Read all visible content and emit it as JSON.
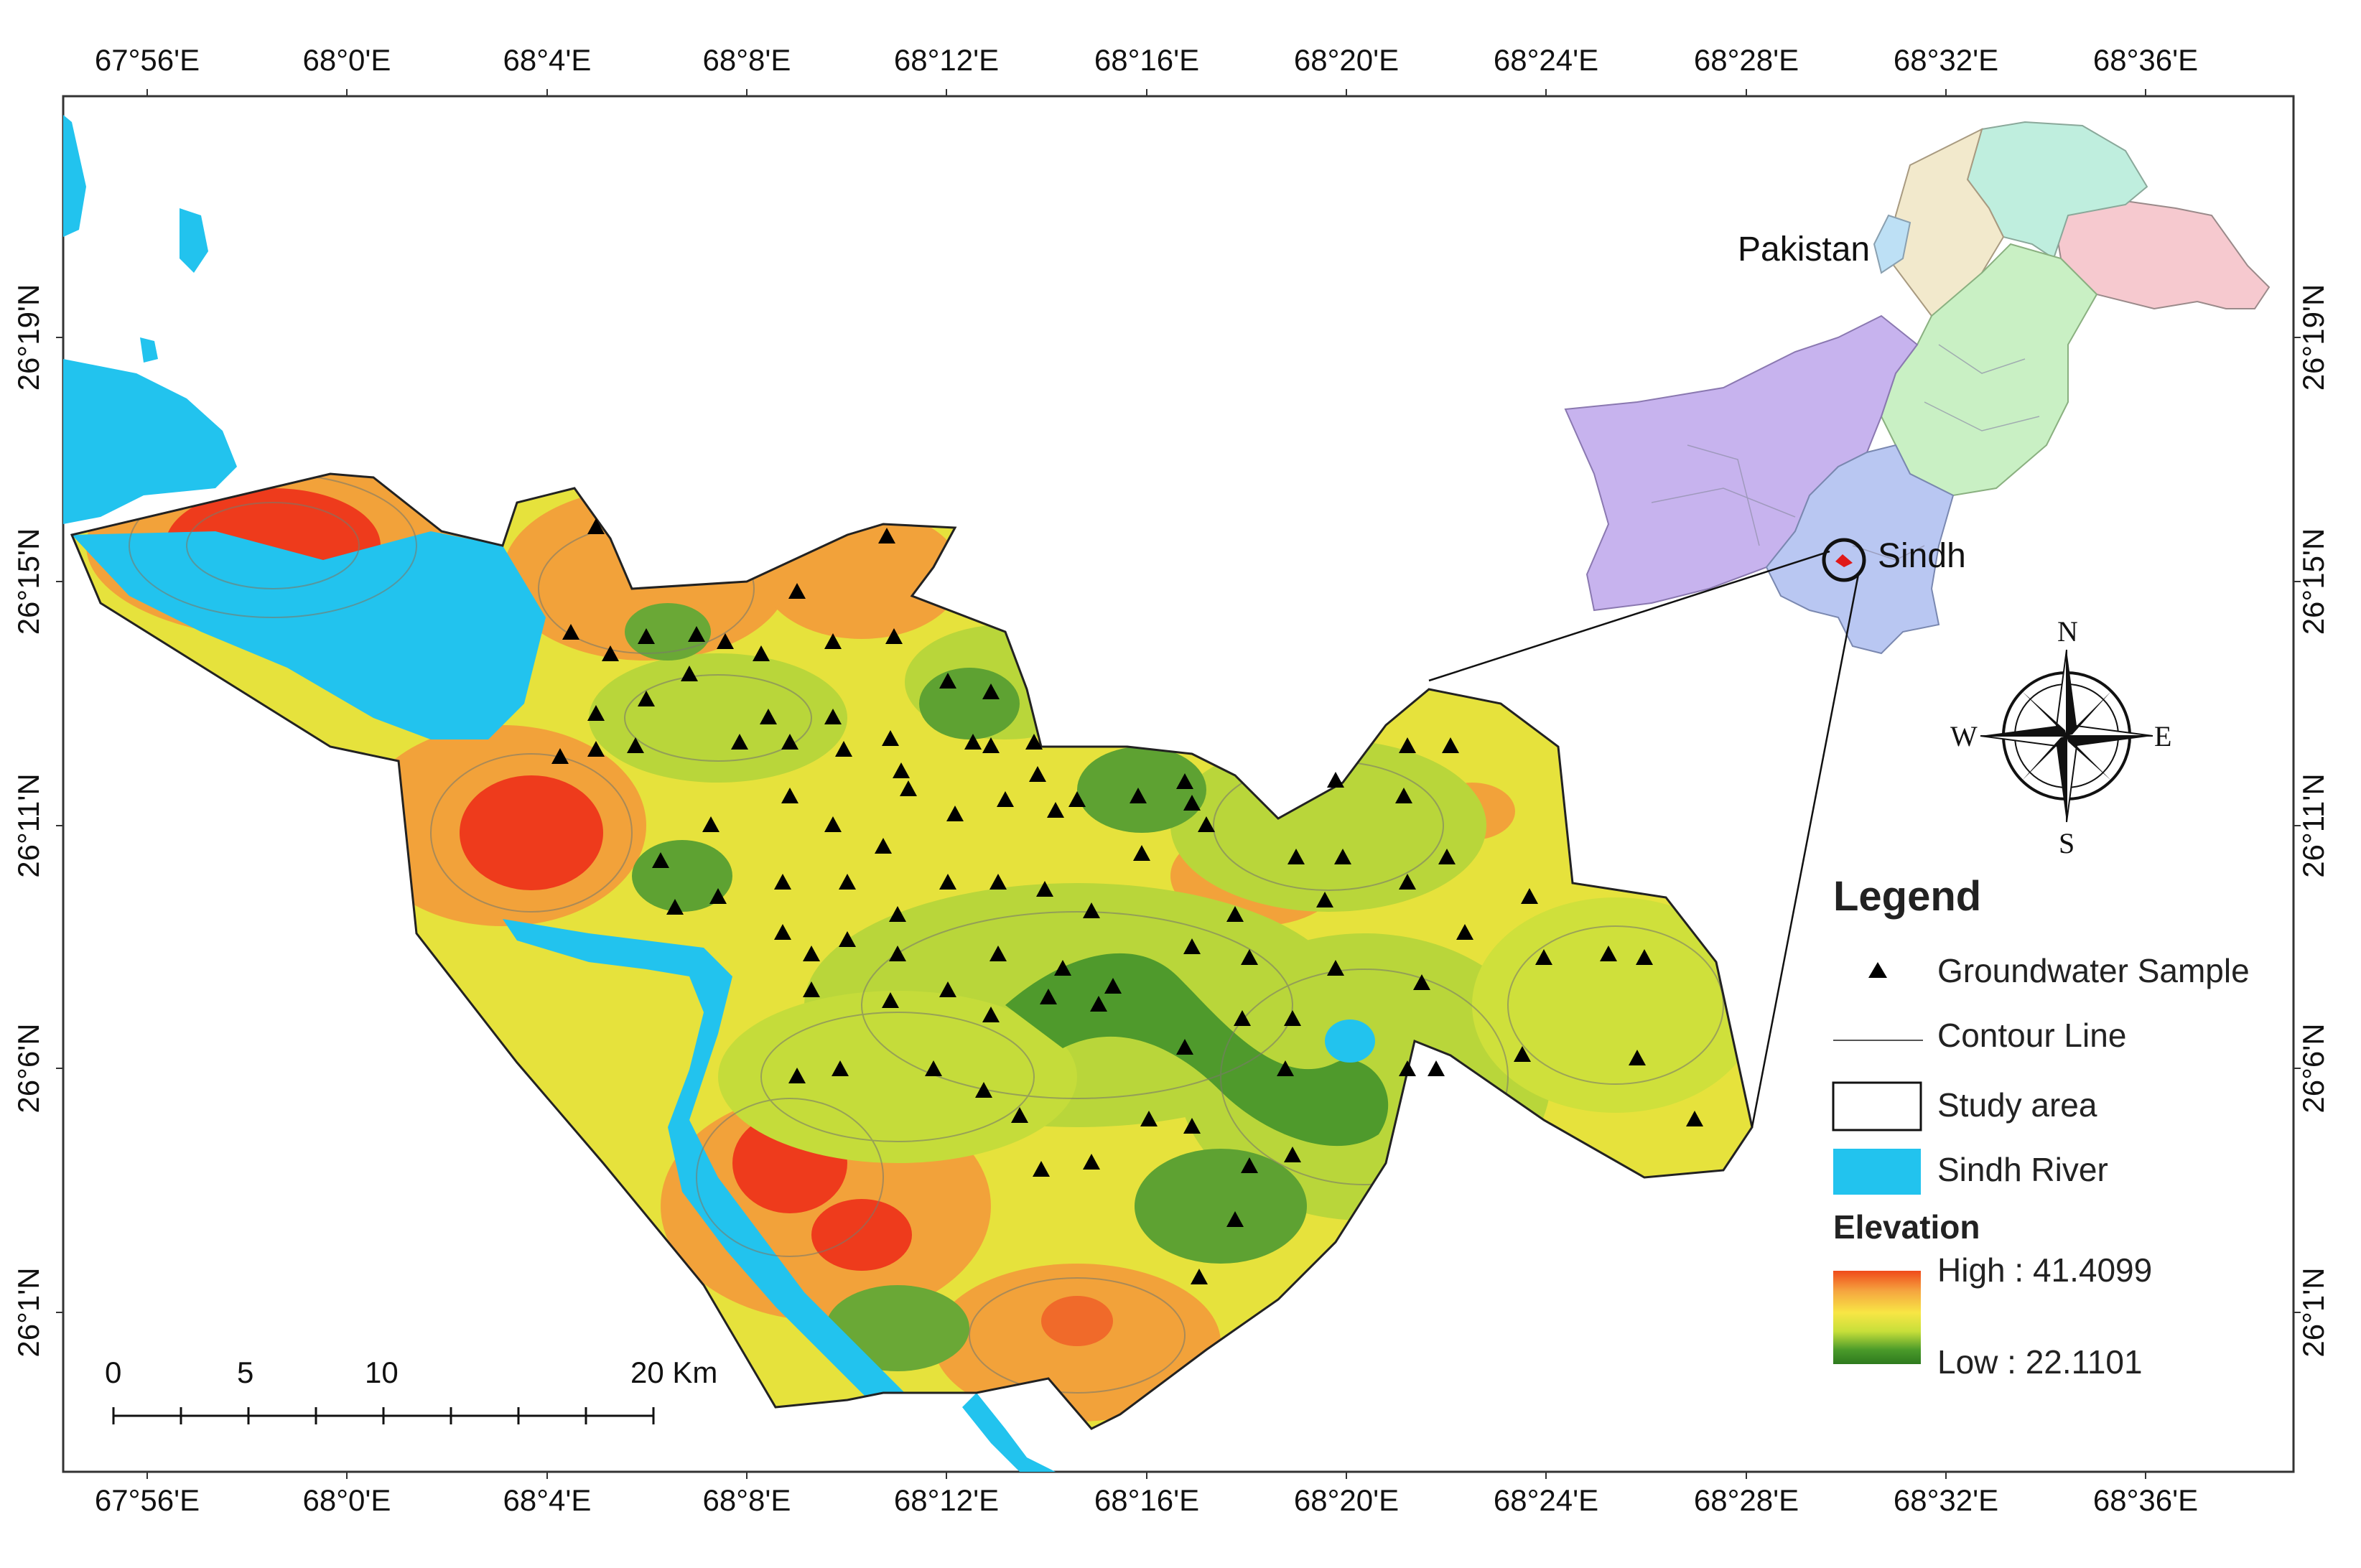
{
  "axes": {
    "top_ticks": [
      "67°56'E",
      "68°0'E",
      "68°4'E",
      "68°8'E",
      "68°12'E",
      "68°16'E",
      "68°20'E",
      "68°24'E",
      "68°28'E",
      "68°32'E",
      "68°36'E"
    ],
    "bottom_ticks": [
      "67°56'E",
      "68°0'E",
      "68°4'E",
      "68°8'E",
      "68°12'E",
      "68°16'E",
      "68°20'E",
      "68°24'E",
      "68°28'E",
      "68°32'E",
      "68°36'E"
    ],
    "left_ticks": [
      "26°19'N",
      "26°15'N",
      "26°11'N",
      "26°6'N",
      "26°1'N"
    ],
    "right_ticks": [
      "26°19'N",
      "26°15'N",
      "26°11'N",
      "26°6'N",
      "26°1'N"
    ]
  },
  "inset": {
    "country_label": "Pakistan",
    "province_label": "Sindh",
    "colors": {
      "balochistan": "#c7b3ee",
      "sindh": "#b9c7f2",
      "punjab": "#c9f0c4",
      "kpk": "#bfeede",
      "gb": "#f6c9cf",
      "fata": "#f2e9cc",
      "ict": "#bde0f5"
    }
  },
  "compass": {
    "n": "N",
    "s": "S",
    "e": "E",
    "w": "W"
  },
  "legend": {
    "title": "Legend",
    "items": [
      {
        "label": "Groundwater Sample",
        "symbol": "triangle-icon"
      },
      {
        "label": "Contour Line",
        "symbol": "line-icon"
      },
      {
        "label": "Study area",
        "symbol": "box-icon"
      },
      {
        "label": "Sindh River",
        "symbol": "river-swatch-icon"
      }
    ],
    "elevation_title": "Elevation",
    "high_label": "High : 41.4099",
    "low_label": "Low : 22.1101",
    "gradient_colors": [
      "#f04a1a",
      "#f5a640",
      "#f8e645",
      "#c7df3a",
      "#4a9a2a",
      "#2e7a1e"
    ]
  },
  "scale_bar": {
    "labels": [
      "0",
      "5",
      "10",
      "20 Km"
    ]
  },
  "colors": {
    "river": "#22c3ee",
    "sample_marker": "#000000",
    "frame": "#333333"
  }
}
